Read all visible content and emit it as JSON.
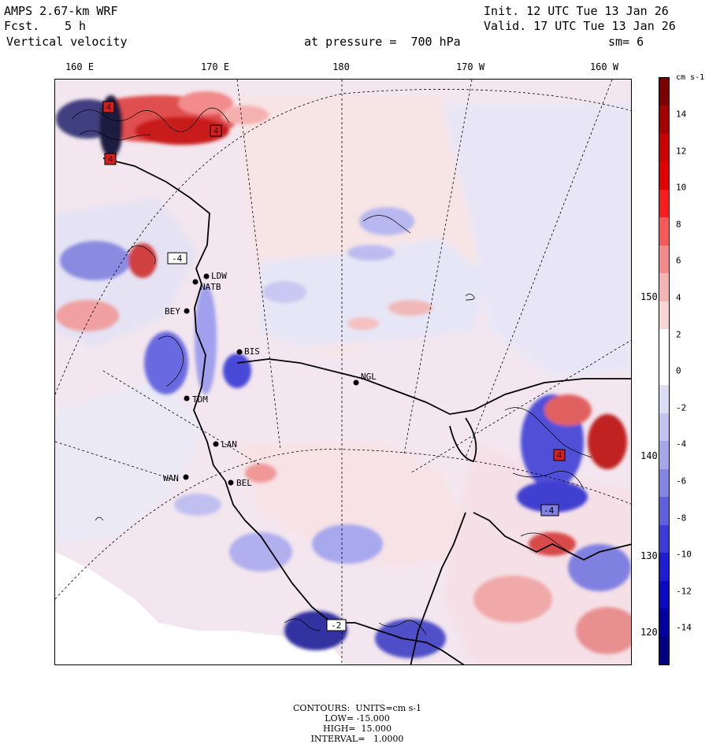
{
  "header": {
    "model": "AMPS 2.67-km WRF",
    "fcst_label": "Fcst.",
    "fcst_value": "5 h",
    "variable": "Vertical velocity",
    "init": "Init. 12 UTC Tue 13 Jan 26",
    "valid": "Valid. 17 UTC Tue 13 Jan 26",
    "pressure": "at pressure =  700 hPa",
    "smoothing": "sm= 6"
  },
  "map": {
    "lon_labels": [
      "160 E",
      "170 E",
      "180",
      "170 W",
      "160 W"
    ],
    "lat_labels": [
      "150 W",
      "140 W",
      "130 W",
      "120 W"
    ],
    "stations": [
      "LDW",
      "NATB",
      "BEY",
      "BIS",
      "NGL",
      "TDM",
      "LAN",
      "WAN",
      "BEL"
    ],
    "field_labels": [
      "4",
      "4",
      "4",
      "-4",
      "4",
      "-4",
      "-2"
    ]
  },
  "colorbar": {
    "units": "cm s-1",
    "ticks": [
      "14",
      "12",
      "10",
      "8",
      "6",
      "4",
      "2",
      "0",
      "-2",
      "-4",
      "-6",
      "-8",
      "-10",
      "-12",
      "-14"
    ],
    "colors": [
      "#7a0000",
      "#a50000",
      "#c80000",
      "#e00000",
      "#f51d1d",
      "#f55a5a",
      "#f28b8b",
      "#f5b4b4",
      "#f8d6d6",
      "#ffffff",
      "#ffffff",
      "#dcdcf5",
      "#c3c3f0",
      "#a5a5ea",
      "#8484e2",
      "#6060dc",
      "#3c3cd6",
      "#1e1ed0",
      "#0a0ac0",
      "#0000a0",
      "#000080"
    ]
  },
  "footer": {
    "contours": "CONTOURS:  UNITS=cm s-1",
    "low": "LOW= -15.000",
    "high": "HIGH=  15.000",
    "interval": "INTERVAL=   1.0000"
  }
}
